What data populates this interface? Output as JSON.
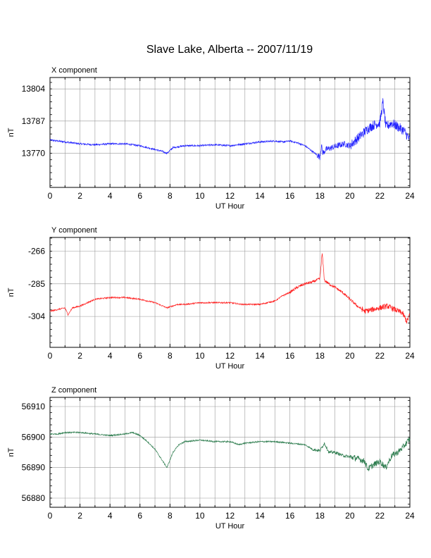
{
  "title": "Slave Lake, Alberta -- 2007/11/19",
  "colors": {
    "x": "#2020ff",
    "y": "#ff2020",
    "z": "#2e7d4f",
    "grid": "#999999"
  },
  "chart_data": [
    {
      "type": "line",
      "title": "X component",
      "xlabel": "UT Hour",
      "ylabel": "nT",
      "xlim": [
        0,
        24
      ],
      "ylim": [
        13752,
        13810
      ],
      "xticks": [
        0,
        2,
        4,
        6,
        8,
        10,
        12,
        14,
        16,
        18,
        20,
        22,
        24
      ],
      "yticks": [
        13770,
        13787,
        13804
      ],
      "grid": true,
      "series": [
        {
          "color": "#2020ff",
          "x": [
            0,
            1,
            2,
            3,
            4,
            5,
            6,
            6.5,
            7,
            7.5,
            7.8,
            8.2,
            9,
            10,
            11,
            12,
            13,
            14,
            15,
            15.5,
            16,
            16.5,
            17,
            17.5,
            18,
            18.1,
            18.2,
            18.4,
            18.8,
            19.2,
            19.6,
            20,
            20.4,
            20.8,
            21.2,
            21.6,
            22,
            22.2,
            22.4,
            22.8,
            23.2,
            23.6,
            24
          ],
          "values": [
            13777,
            13776,
            13775,
            13774.5,
            13775,
            13775,
            13774,
            13773,
            13772,
            13771,
            13770,
            13773,
            13774,
            13774,
            13774.5,
            13774,
            13775,
            13776,
            13776.5,
            13776,
            13776.5,
            13775.5,
            13774,
            13771,
            13768,
            13774,
            13770,
            13772,
            13773,
            13774,
            13775,
            13774,
            13777,
            13780,
            13783,
            13785,
            13786,
            13797,
            13784,
            13786,
            13784,
            13782,
            13777
          ]
        }
      ]
    },
    {
      "type": "line",
      "title": "Y component",
      "xlabel": "UT Hour",
      "ylabel": "nT",
      "xlim": [
        0,
        24
      ],
      "ylim": [
        -322,
        -258
      ],
      "xticks": [
        0,
        2,
        4,
        6,
        8,
        10,
        12,
        14,
        16,
        18,
        20,
        22,
        24
      ],
      "yticks": [
        -266,
        -285,
        -304
      ],
      "grid": true,
      "series": [
        {
          "color": "#ff2020",
          "x": [
            0,
            0.5,
            1,
            1.2,
            1.5,
            2,
            2.5,
            3,
            4,
            5,
            6,
            7,
            7.8,
            8.5,
            9,
            10,
            11,
            12,
            12.8,
            13.5,
            14,
            15,
            15.5,
            16,
            16.5,
            17,
            17.5,
            18,
            18.15,
            18.3,
            18.6,
            19,
            19.5,
            20,
            20.5,
            21,
            21.5,
            22,
            22.5,
            23,
            23.5,
            23.8,
            24
          ],
          "values": [
            -301,
            -300,
            -299,
            -303,
            -299,
            -298,
            -296,
            -294,
            -293,
            -293,
            -294,
            -296,
            -299,
            -297,
            -297,
            -296,
            -296,
            -296,
            -297,
            -297,
            -297,
            -295,
            -292,
            -290,
            -287,
            -285,
            -284,
            -282,
            -267,
            -283,
            -285,
            -287,
            -290,
            -294,
            -298,
            -301,
            -300,
            -299,
            -298,
            -300,
            -302,
            -307,
            -303
          ]
        }
      ]
    },
    {
      "type": "line",
      "title": "Z component",
      "xlabel": "UT Hour",
      "ylabel": "nT",
      "xlim": [
        0,
        24
      ],
      "ylim": [
        56877,
        56913
      ],
      "xticks": [
        0,
        2,
        4,
        6,
        8,
        10,
        12,
        14,
        16,
        18,
        20,
        22,
        24
      ],
      "yticks": [
        56880,
        56890,
        56900,
        56910
      ],
      "grid": true,
      "series": [
        {
          "color": "#2e7d4f",
          "x": [
            0,
            0.5,
            1,
            1.5,
            2,
            3,
            4,
            5,
            5.5,
            6,
            6.5,
            7,
            7.4,
            7.8,
            8.2,
            8.6,
            9,
            10,
            11,
            12,
            12.6,
            13,
            14,
            15,
            16,
            17,
            17.5,
            18,
            18.3,
            18.6,
            19,
            19.5,
            20,
            20.5,
            21,
            21.2,
            21.6,
            22,
            22.4,
            22.8,
            23.2,
            23.6,
            24
          ],
          "values": [
            56901,
            56901,
            56901.5,
            56901.5,
            56901.5,
            56901,
            56900.5,
            56901,
            56901.5,
            56900.5,
            56898.5,
            56896,
            56893,
            56890,
            56895,
            56897.5,
            56898.5,
            56899,
            56898.5,
            56898.5,
            56897.5,
            56898,
            56898.5,
            56898.5,
            56898,
            56897.5,
            56896,
            56895.5,
            56898,
            56895,
            56895,
            56894,
            56893.5,
            56893,
            56892,
            56889.5,
            56891,
            56892,
            56890,
            56894,
            56895,
            56897,
            56899.5
          ]
        }
      ]
    }
  ]
}
